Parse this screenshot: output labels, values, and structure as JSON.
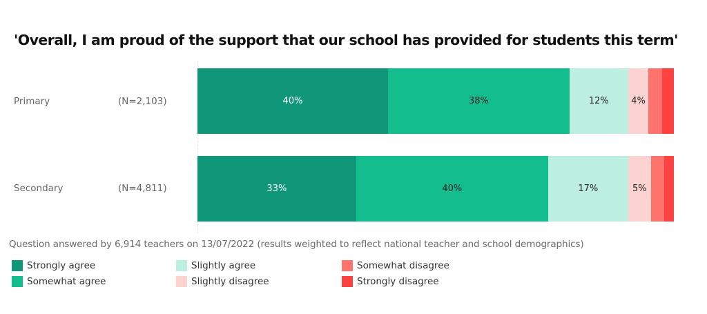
{
  "chart_data": {
    "type": "bar",
    "orientation": "horizontal",
    "stacked": true,
    "normalized": true,
    "title": "'Overall, I am proud of the support that our school has provided for students this term'",
    "categories": [
      "Primary",
      "Secondary"
    ],
    "sample_sizes": [
      "(N=2,103)",
      "(N=4,811)"
    ],
    "series": [
      {
        "name": "Strongly agree",
        "color": "#10977a",
        "values": [
          40,
          33
        ],
        "labels": [
          "40%",
          "33%"
        ]
      },
      {
        "name": "Somewhat agree",
        "color": "#13bd8e",
        "values": [
          38,
          40
        ],
        "labels": [
          "38%",
          "40%"
        ]
      },
      {
        "name": "Slightly agree",
        "color": "#bdefe0",
        "values": [
          12,
          17
        ],
        "labels": [
          "12%",
          "17%"
        ]
      },
      {
        "name": "Slightly disagree",
        "color": "#fdd3d2",
        "values": [
          4,
          5
        ],
        "labels": [
          "4%",
          "5%"
        ]
      },
      {
        "name": "Somewhat disagree",
        "color": "#fe736c",
        "values": [
          3,
          3
        ],
        "labels": [
          "",
          ""
        ]
      },
      {
        "name": "Strongly disagree",
        "color": "#fe4141",
        "values": [
          2,
          2
        ],
        "labels": [
          "",
          ""
        ]
      }
    ],
    "xlabel": "",
    "ylabel": "",
    "xlim": [
      0,
      100
    ],
    "grid": false,
    "legend_position": "bottom",
    "footnote": "Question answered by 6,914 teachers on 13/07/2022 (results weighted to reflect national teacher and school demographics)"
  },
  "title": "'Overall, I am proud of the support that our school has provided for students this term'",
  "rows": [
    {
      "label": "Primary",
      "n": "(N=2,103)",
      "segments": [
        {
          "width": "40%",
          "label": "40%"
        },
        {
          "width": "38.1%",
          "label": "38%"
        },
        {
          "width": "12.3%",
          "label": "12%"
        },
        {
          "width": "4.3%",
          "label": "4%"
        },
        {
          "width": "2.9%",
          "label": ""
        },
        {
          "width": "2.4%",
          "label": ""
        }
      ]
    },
    {
      "label": "Secondary",
      "n": "(N=4,811)",
      "segments": [
        {
          "width": "33.3%",
          "label": "33%"
        },
        {
          "width": "40.3%",
          "label": "40%"
        },
        {
          "width": "16.8%",
          "label": "17%"
        },
        {
          "width": "4.8%",
          "label": "5%"
        },
        {
          "width": "2.8%",
          "label": ""
        },
        {
          "width": "2%",
          "label": ""
        }
      ]
    }
  ],
  "footnote": "Question answered by 6,914 teachers on 13/07/2022 (results weighted to reflect national teacher and school demographics)",
  "legend": [
    {
      "label": "Strongly agree",
      "color": "#10977a"
    },
    {
      "label": "Somewhat agree",
      "color": "#13bd8e"
    },
    {
      "label": "Slightly agree",
      "color": "#bdefe0"
    },
    {
      "label": "Slightly disagree",
      "color": "#fdd3d2"
    },
    {
      "label": "Somewhat disagree",
      "color": "#fe736c"
    },
    {
      "label": "Strongly disagree",
      "color": "#fe4141"
    }
  ]
}
